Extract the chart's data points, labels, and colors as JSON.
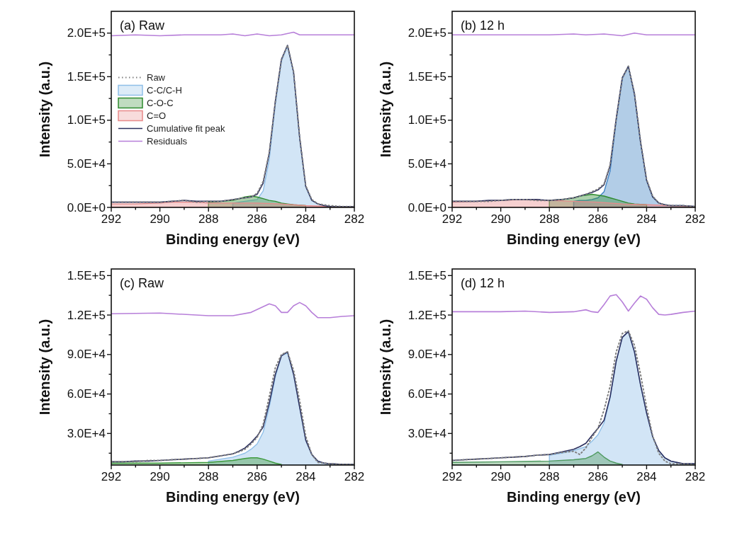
{
  "chart_data": [
    {
      "type": "line",
      "title": "(a) Raw",
      "xlabel": "Binding energy (eV)",
      "ylabel": "Intensity (a.u.)",
      "legend": "left",
      "xlim": [
        292,
        282
      ],
      "xticks": [
        292,
        {
          "value": 291,
          "label": null
        },
        290,
        {
          "value": 289,
          "label": null
        },
        288,
        {
          "value": 287,
          "label": null
        },
        286,
        {
          "value": 285,
          "label": null
        },
        284,
        {
          "value": 283,
          "label": null
        },
        282
      ],
      "ylim": [
        0,
        225000
      ],
      "yticks": [
        {
          "value": 0,
          "label": "0.0E+0"
        },
        {
          "value": 25000,
          "label": null
        },
        {
          "value": 50000,
          "label": "5.0E+4"
        },
        {
          "value": 75000,
          "label": null
        },
        {
          "value": 100000,
          "label": "1.0E+5"
        },
        {
          "value": 125000,
          "label": null
        },
        {
          "value": 150000,
          "label": "1.5E+5"
        },
        {
          "value": 175000,
          "label": null
        },
        {
          "value": 200000,
          "label": "2.0E+5"
        }
      ],
      "x": [
        292,
        291.5,
        291,
        290.5,
        290,
        289.5,
        289,
        288.5,
        288,
        287.5,
        287,
        286.75,
        286.5,
        286.25,
        286,
        285.75,
        285.5,
        285.25,
        285,
        284.75,
        284.5,
        284.25,
        284,
        283.75,
        283.5,
        283.25,
        283,
        282.5,
        282
      ],
      "series": [
        {
          "name": "C-C/C-H",
          "type": "area",
          "color": "#8fbfe8",
          "x": [
            287,
            286.75,
            286.5,
            286.25,
            286,
            285.75,
            285.5,
            285.25,
            285,
            284.75,
            284.5,
            284.25,
            284,
            283.75,
            283.5,
            283.25,
            283,
            282.5,
            282
          ],
          "values": [
            5000,
            6000,
            7000,
            8000,
            9000,
            19000,
            55000,
            118000,
            168000,
            185000,
            155000,
            80000,
            24000,
            8000,
            4000,
            2000,
            1000,
            1000,
            1000
          ]
        },
        {
          "name": "C-O-C",
          "type": "area",
          "color": "#2e8b2e",
          "x": [
            288,
            287.5,
            287,
            286.75,
            286.5,
            286.25,
            286,
            285.75,
            285.5,
            285.25,
            285,
            284.75,
            284.5,
            284
          ],
          "values": [
            6000,
            7000,
            8000,
            10000,
            12000,
            13000,
            12000,
            10000,
            8000,
            7000,
            5000,
            4000,
            3000,
            2000
          ]
        },
        {
          "name": "C=O",
          "type": "area",
          "color": "#e88a8a",
          "x": [
            292,
            291,
            290,
            289.5,
            289,
            288.5,
            288,
            287,
            286,
            285,
            284,
            283,
            282
          ],
          "values": [
            4000,
            4000,
            5000,
            6000,
            6000,
            6000,
            5000,
            5000,
            5000,
            4000,
            2000,
            1000,
            1000
          ]
        },
        {
          "name": "Cumulative fit peak",
          "color": "#2b2f5e",
          "values": [
            6000,
            6000,
            6000,
            6000,
            6000,
            7000,
            8000,
            7000,
            7000,
            7000,
            9000,
            10000,
            11000,
            12000,
            15000,
            28000,
            62000,
            122000,
            170000,
            186000,
            155000,
            80000,
            24000,
            8000,
            4000,
            2000,
            1000,
            1000,
            1000
          ]
        },
        {
          "name": "Raw",
          "line_style": "dotted",
          "color": "#808080",
          "values": [
            6000,
            6000,
            6000,
            6000,
            6000,
            7000,
            8000,
            6000,
            7000,
            7000,
            9000,
            10000,
            11000,
            12000,
            16000,
            30000,
            63000,
            121000,
            169000,
            186000,
            156000,
            81000,
            25000,
            9000,
            4000,
            3000,
            2000,
            1000,
            1000
          ]
        },
        {
          "name": "Residuals",
          "color": "#b77fd9",
          "x": [
            292,
            291,
            290,
            289,
            288,
            287.5,
            287,
            286.5,
            286,
            285.5,
            285,
            284.5,
            284.25,
            283,
            282
          ],
          "values": [
            197000,
            198000,
            197000,
            198000,
            198000,
            198000,
            199000,
            197000,
            199000,
            197000,
            198000,
            201000,
            198000,
            198000,
            198000
          ]
        }
      ]
    },
    {
      "type": "line",
      "title": "(b) 12 h",
      "xlabel": "Binding energy (eV)",
      "ylabel": "Intensity (a.u.)",
      "xlim": [
        292,
        282
      ],
      "xticks": [
        292,
        {
          "value": 291,
          "label": null
        },
        290,
        {
          "value": 289,
          "label": null
        },
        288,
        {
          "value": 287,
          "label": null
        },
        286,
        {
          "value": 285,
          "label": null
        },
        284,
        {
          "value": 283,
          "label": null
        },
        282
      ],
      "ylim": [
        0,
        225000
      ],
      "yticks": [
        {
          "value": 0,
          "label": "0.0E+0"
        },
        {
          "value": 25000,
          "label": null
        },
        {
          "value": 50000,
          "label": "5.0E+4"
        },
        {
          "value": 75000,
          "label": null
        },
        {
          "value": 100000,
          "label": "1.0E+5"
        },
        {
          "value": 125000,
          "label": null
        },
        {
          "value": 150000,
          "label": "1.5E+5"
        },
        {
          "value": 175000,
          "label": null
        },
        {
          "value": 200000,
          "label": "2.0E+5"
        }
      ],
      "x": [
        292,
        291.5,
        291,
        290.5,
        290,
        289.5,
        289,
        288.5,
        288,
        287.5,
        287,
        286.75,
        286.5,
        286.25,
        286,
        285.75,
        285.5,
        285.25,
        285,
        284.75,
        284.5,
        284.25,
        284,
        283.75,
        283.5,
        283.25,
        283,
        282.5,
        282
      ],
      "series": [
        {
          "type": "area",
          "color": "#3f83c4",
          "x": [
            287,
            286.75,
            286.5,
            286.25,
            286,
            285.75,
            285.5,
            285.25,
            285,
            284.75,
            284.5,
            284.25,
            284,
            283.75,
            283.5,
            283.25,
            283,
            282.5,
            282
          ],
          "values": [
            7000,
            8000,
            8000,
            9000,
            11000,
            18000,
            42000,
            100000,
            148000,
            162000,
            130000,
            75000,
            31000,
            12000,
            5000,
            3000,
            2000,
            2000,
            1000
          ]
        },
        {
          "type": "area",
          "color": "#2e8b2e",
          "x": [
            288,
            287.5,
            287,
            286.75,
            286.5,
            286.25,
            286,
            285.75,
            285.5,
            285.25,
            285,
            284.75,
            284.5,
            284
          ],
          "values": [
            8000,
            9000,
            11000,
            13000,
            14000,
            15000,
            14000,
            13000,
            11000,
            9000,
            7000,
            5000,
            4000,
            3000
          ]
        },
        {
          "type": "area",
          "color": "#e88a8a",
          "x": [
            292,
            291,
            290,
            289,
            288,
            287,
            286,
            285,
            284,
            283,
            282
          ],
          "values": [
            6000,
            7000,
            8000,
            9000,
            8000,
            7000,
            6000,
            4000,
            3000,
            2000,
            1000
          ]
        },
        {
          "color": "#2b2f5e",
          "values": [
            7000,
            7000,
            7000,
            8000,
            8000,
            9000,
            9000,
            9000,
            8000,
            9000,
            11000,
            13000,
            15000,
            17000,
            20000,
            26000,
            48000,
            102000,
            149000,
            162000,
            130000,
            75000,
            31000,
            12000,
            5000,
            3000,
            2000,
            2000,
            1000
          ]
        },
        {
          "line_style": "dotted",
          "color": "#808080",
          "values": [
            7000,
            7000,
            7000,
            7000,
            8000,
            9000,
            9000,
            8000,
            8000,
            9000,
            11000,
            13000,
            15000,
            18000,
            21000,
            27000,
            49000,
            101000,
            148000,
            162000,
            131000,
            76000,
            32000,
            13000,
            5000,
            3000,
            2000,
            2000,
            1000
          ]
        },
        {
          "color": "#b77fd9",
          "x": [
            292,
            290,
            288,
            287,
            286.5,
            285.75,
            285,
            284.5,
            284,
            283,
            282
          ],
          "values": [
            198000,
            198000,
            198000,
            199000,
            198000,
            199000,
            197000,
            200000,
            198000,
            198000,
            198000
          ]
        }
      ]
    },
    {
      "type": "line",
      "title": "(c) Raw",
      "xlabel": "Binding energy (eV)",
      "ylabel": "Intensity (a.u.)",
      "xlim": [
        292,
        282
      ],
      "xticks": [
        292,
        {
          "value": 291,
          "label": null
        },
        290,
        {
          "value": 289,
          "label": null
        },
        288,
        {
          "value": 287,
          "label": null
        },
        286,
        {
          "value": 285,
          "label": null
        },
        284,
        {
          "value": 283,
          "label": null
        },
        282
      ],
      "ylim": [
        6000,
        155000
      ],
      "yticks": [
        {
          "value": 15000,
          "label": null
        },
        {
          "value": 30000,
          "label": "3.0E+4"
        },
        {
          "value": 45000,
          "label": null
        },
        {
          "value": 60000,
          "label": "6.0E+4"
        },
        {
          "value": 75000,
          "label": null
        },
        {
          "value": 90000,
          "label": "9.0E+4"
        },
        {
          "value": 105000,
          "label": null
        },
        {
          "value": 120000,
          "label": "1.2E+5"
        },
        {
          "value": 135000,
          "label": null
        },
        {
          "value": 150000,
          "label": "1.5E+5"
        }
      ],
      "x": [
        292,
        291.5,
        291,
        290.5,
        290,
        289.5,
        289,
        288.5,
        288,
        287.5,
        287,
        286.75,
        286.5,
        286.25,
        286,
        285.75,
        285.5,
        285.25,
        285,
        284.75,
        284.5,
        284.25,
        284,
        283.75,
        283.5,
        283.25,
        283,
        282.5,
        282
      ],
      "series": [
        {
          "type": "area",
          "color": "#8fbfe8",
          "x": [
            288,
            287.5,
            287,
            286.75,
            286.5,
            286.25,
            286,
            285.75,
            285.5,
            285.25,
            285,
            284.75,
            284.5,
            284.25,
            284,
            283.75,
            283.5,
            283.25,
            283,
            282.5,
            282
          ],
          "values": [
            9000,
            10500,
            12000,
            13500,
            15000,
            18000,
            22000,
            31000,
            50000,
            73000,
            89000,
            91000,
            75000,
            50000,
            25000,
            14000,
            9000,
            7500,
            7000,
            6500,
            6500
          ]
        },
        {
          "type": "area",
          "color": "#3d9a3d",
          "x": [
            292,
            290,
            288,
            287,
            286.5,
            286.25,
            286,
            285.75,
            285.5,
            285.25,
            285
          ],
          "values": [
            7500,
            7500,
            8000,
            9500,
            11000,
            11500,
            11500,
            10500,
            9000,
            7500,
            6500
          ]
        },
        {
          "color": "#2b2f5e",
          "values": [
            8500,
            8500,
            9000,
            9000,
            9500,
            10000,
            10500,
            11000,
            11500,
            13000,
            14500,
            16500,
            19000,
            23000,
            28000,
            35000,
            53000,
            75000,
            89000,
            92000,
            75000,
            50000,
            25000,
            14000,
            9000,
            7500,
            7000,
            6500,
            6500
          ]
        },
        {
          "line_style": "dotted",
          "color": "#808080",
          "values": [
            8500,
            8500,
            8500,
            9500,
            9500,
            10000,
            10500,
            11000,
            11500,
            13000,
            14500,
            16000,
            18000,
            22000,
            27000,
            37000,
            58000,
            80000,
            90000,
            92000,
            78000,
            55000,
            28000,
            14000,
            8000,
            7500,
            7000,
            6500,
            6500
          ]
        },
        {
          "color": "#b77fd9",
          "x": [
            292,
            290,
            288,
            287,
            286.25,
            285.5,
            285.25,
            285,
            284.75,
            284.5,
            284.25,
            284,
            283.75,
            283.5,
            283,
            282.5,
            282
          ],
          "values": [
            121000,
            121500,
            119500,
            119500,
            122000,
            128500,
            127000,
            122000,
            122000,
            127000,
            129500,
            127000,
            122000,
            118000,
            118000,
            119000,
            119500
          ]
        }
      ]
    },
    {
      "type": "line",
      "title": "(d) 12 h",
      "xlabel": "Binding energy (eV)",
      "ylabel": "Intensity (a.u.)",
      "xlim": [
        292,
        282
      ],
      "xticks": [
        292,
        {
          "value": 291,
          "label": null
        },
        290,
        {
          "value": 289,
          "label": null
        },
        288,
        {
          "value": 287,
          "label": null
        },
        286,
        {
          "value": 285,
          "label": null
        },
        284,
        {
          "value": 283,
          "label": null
        },
        282
      ],
      "ylim": [
        6000,
        155000
      ],
      "yticks": [
        {
          "value": 15000,
          "label": null
        },
        {
          "value": 30000,
          "label": "3.0E+4"
        },
        {
          "value": 45000,
          "label": null
        },
        {
          "value": 60000,
          "label": "6.0E+4"
        },
        {
          "value": 75000,
          "label": null
        },
        {
          "value": 90000,
          "label": "9.0E+4"
        },
        {
          "value": 105000,
          "label": null
        },
        {
          "value": 120000,
          "label": "1.2E+5"
        },
        {
          "value": 135000,
          "label": null
        },
        {
          "value": 150000,
          "label": "1.5E+5"
        }
      ],
      "x": [
        292,
        291.5,
        291,
        290.5,
        290,
        289.5,
        289,
        288.5,
        288,
        287.5,
        287,
        286.75,
        286.5,
        286.25,
        286,
        285.75,
        285.5,
        285.25,
        285,
        284.75,
        284.5,
        284.25,
        284,
        283.75,
        283.5,
        283.25,
        283,
        282.5,
        282
      ],
      "series": [
        {
          "type": "area",
          "color": "#8fbfe8",
          "x": [
            288,
            287.5,
            287,
            286.75,
            286.5,
            286.25,
            286,
            285.75,
            285.5,
            285.25,
            285,
            284.75,
            284.5,
            284.25,
            284,
            283.75,
            283.5,
            283.25,
            283,
            282.5,
            282
          ],
          "values": [
            13500,
            15000,
            17000,
            18500,
            20000,
            24000,
            29000,
            38000,
            57000,
            85000,
            103000,
            107500,
            92000,
            67000,
            45500,
            27500,
            17000,
            11500,
            9000,
            7000,
            7000
          ]
        },
        {
          "type": "area",
          "color": "#4f9a60",
          "x": [
            292,
            290,
            288,
            287,
            286.5,
            286.25,
            286,
            285.75,
            285.5,
            285.25,
            285
          ],
          "values": [
            8000,
            8500,
            9000,
            10000,
            11000,
            13000,
            16000,
            12000,
            9000,
            7500,
            6500
          ]
        },
        {
          "color": "#2b2f5e",
          "values": [
            9500,
            10000,
            10500,
            11000,
            11500,
            12000,
            12500,
            13500,
            14000,
            16000,
            18000,
            20000,
            22500,
            28500,
            34000,
            40000,
            58000,
            85000,
            103000,
            107500,
            92000,
            67000,
            45500,
            27500,
            17000,
            11500,
            9000,
            7000,
            7000
          ]
        },
        {
          "line_style": "dotted",
          "color": "#808080",
          "values": [
            9500,
            10000,
            10500,
            11000,
            11500,
            12000,
            12500,
            13500,
            14000,
            15500,
            16500,
            14000,
            19000,
            27000,
            34000,
            48000,
            66000,
            92000,
            106000,
            108000,
            97000,
            75000,
            50000,
            28000,
            15000,
            9000,
            7000,
            7000,
            6500
          ]
        },
        {
          "color": "#b77fd9",
          "x": [
            292,
            290,
            289,
            288,
            287,
            286.5,
            286.25,
            286,
            285.75,
            285.5,
            285.25,
            285,
            284.75,
            284.5,
            284.25,
            284,
            283.75,
            283.5,
            283.25,
            283,
            282.5,
            282
          ],
          "values": [
            122500,
            122500,
            123000,
            122000,
            122500,
            124000,
            122500,
            122000,
            128000,
            134500,
            135500,
            130000,
            123000,
            129000,
            134500,
            132000,
            125500,
            120500,
            120000,
            120500,
            122000,
            123000
          ]
        }
      ]
    }
  ]
}
